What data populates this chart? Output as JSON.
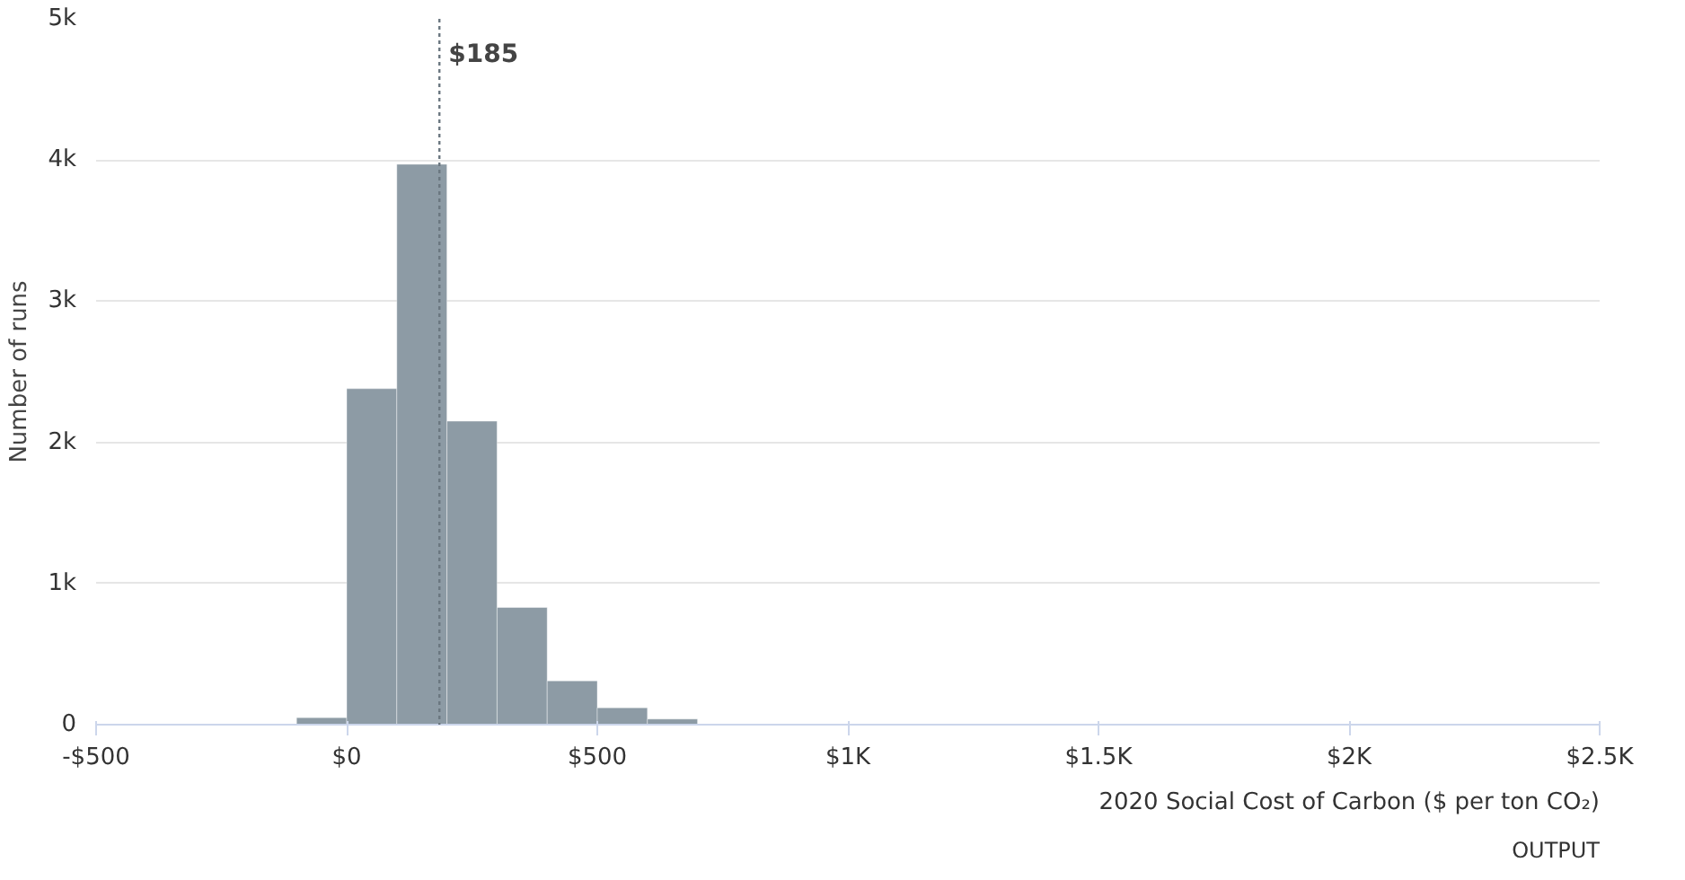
{
  "chart_data": {
    "type": "histogram",
    "xlabel": "2020 Social Cost of Carbon ($ per ton CO₂)",
    "ylabel": "Number of runs",
    "bins": [
      -100,
      0,
      100,
      200,
      300,
      400,
      500,
      600,
      700
    ],
    "values": [
      50,
      2380,
      3970,
      2150,
      830,
      310,
      120,
      40
    ],
    "color": "#8d9ba5",
    "xlim": [
      -500,
      2500
    ],
    "ylim": [
      0,
      5000
    ],
    "xticks": [
      {
        "value": -500,
        "label": "-$500"
      },
      {
        "value": 0,
        "label": "$0"
      },
      {
        "value": 500,
        "label": "$500"
      },
      {
        "value": 1000,
        "label": "$1K"
      },
      {
        "value": 1500,
        "label": "$1.5K"
      },
      {
        "value": 2000,
        "label": "$2K"
      },
      {
        "value": 2500,
        "label": "$2.5K"
      }
    ],
    "yticks": [
      0,
      {
        "value": 1000,
        "label": "1k"
      },
      {
        "value": 2000,
        "label": "2k"
      },
      {
        "value": 3000,
        "label": "3k"
      },
      {
        "value": 4000,
        "label": "4k"
      },
      {
        "value": 5000,
        "label": "5k"
      }
    ],
    "grid": "y",
    "ref_lines": [
      {
        "axis": "x",
        "value": 185,
        "label": "$185",
        "color": "#6b7780",
        "line_style": "dotted"
      }
    ],
    "annotations": [
      "OUTPUT"
    ]
  }
}
